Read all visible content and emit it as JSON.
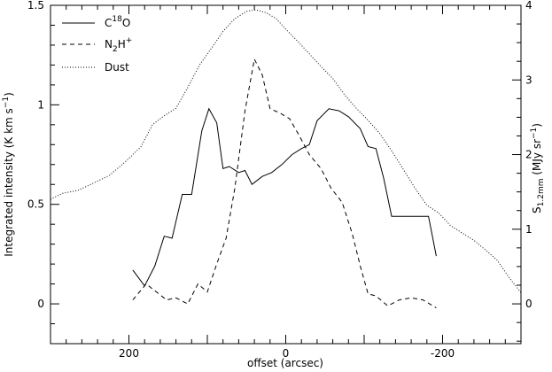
{
  "chart_data": {
    "type": "line",
    "xlabel": "offset (arcsec)",
    "ylabel_left": "Integrated intensity (K km s^-1)",
    "ylabel_right": "S1.2mm (MJy sr^-1)",
    "xlim": [
      300,
      -300
    ],
    "ylim_left": [
      -0.2,
      1.5
    ],
    "ylim_right": [
      -0.5333,
      4.0
    ],
    "x_ticks": [
      200,
      0,
      -200
    ],
    "x_tick_labels": [
      "200",
      "0",
      "-200"
    ],
    "y_left_ticks": [
      0,
      0.5,
      1,
      1.5
    ],
    "y_left_tick_labels": [
      "0",
      "0.5",
      "1",
      "1.5"
    ],
    "y_right_ticks": [
      0,
      1,
      2,
      3,
      4
    ],
    "y_right_tick_labels": [
      "0",
      "1",
      "2",
      "3",
      "4"
    ],
    "legend": {
      "position": "top-left",
      "entries": [
        {
          "label": "C18O",
          "style": "solid"
        },
        {
          "label": "N2H+",
          "style": "dashed"
        },
        {
          "label": "Dust",
          "style": "dotted"
        }
      ]
    },
    "series": [
      {
        "name": "C18O",
        "axis": "left",
        "style": "solid",
        "x": [
          195,
          180,
          167,
          155,
          145,
          132,
          120,
          107,
          98,
          88,
          80,
          72,
          60,
          52,
          43,
          30,
          18,
          5,
          -8,
          -20,
          -30,
          -40,
          -55,
          -68,
          -80,
          -95,
          -105,
          -115,
          -125,
          -135,
          -150,
          -165,
          -182,
          -192
        ],
        "y": [
          0.17,
          0.09,
          0.19,
          0.34,
          0.33,
          0.55,
          0.55,
          0.87,
          0.98,
          0.91,
          0.68,
          0.69,
          0.66,
          0.67,
          0.6,
          0.64,
          0.66,
          0.7,
          0.75,
          0.78,
          0.8,
          0.92,
          0.98,
          0.97,
          0.94,
          0.88,
          0.79,
          0.78,
          0.63,
          0.44,
          0.44,
          0.44,
          0.44,
          0.24
        ]
      },
      {
        "name": "N2H+",
        "axis": "left",
        "style": "dashed",
        "x": [
          195,
          178,
          165,
          152,
          140,
          125,
          112,
          100,
          88,
          76,
          65,
          52,
          40,
          30,
          20,
          8,
          -5,
          -18,
          -30,
          -45,
          -58,
          -72,
          -85,
          -95,
          -105,
          -115,
          -130,
          -145,
          -160,
          -175,
          -192
        ],
        "y": [
          0.02,
          0.1,
          0.06,
          0.02,
          0.03,
          0.0,
          0.1,
          0.06,
          0.2,
          0.33,
          0.58,
          0.97,
          1.23,
          1.15,
          0.98,
          0.96,
          0.93,
          0.84,
          0.75,
          0.68,
          0.58,
          0.51,
          0.35,
          0.19,
          0.05,
          0.04,
          -0.01,
          0.02,
          0.03,
          0.02,
          -0.02
        ]
      },
      {
        "name": "Dust",
        "axis": "right",
        "style": "dotted",
        "x": [
          300,
          285,
          265,
          245,
          225,
          205,
          185,
          170,
          155,
          140,
          125,
          110,
          95,
          80,
          65,
          50,
          38,
          25,
          12,
          0,
          -15,
          -30,
          -45,
          -60,
          -75,
          -90,
          -105,
          -120,
          -135,
          -150,
          -165,
          -180,
          -195,
          -210,
          -225,
          -240,
          -255,
          -270,
          -285,
          -300
        ],
        "y": [
          1.4,
          1.48,
          1.52,
          1.62,
          1.72,
          1.9,
          2.1,
          2.4,
          2.52,
          2.62,
          2.9,
          3.2,
          3.42,
          3.65,
          3.82,
          3.92,
          3.94,
          3.9,
          3.82,
          3.68,
          3.52,
          3.35,
          3.18,
          3.02,
          2.8,
          2.62,
          2.46,
          2.28,
          2.05,
          1.8,
          1.55,
          1.32,
          1.22,
          1.05,
          0.95,
          0.85,
          0.72,
          0.58,
          0.35,
          0.15
        ]
      }
    ]
  }
}
